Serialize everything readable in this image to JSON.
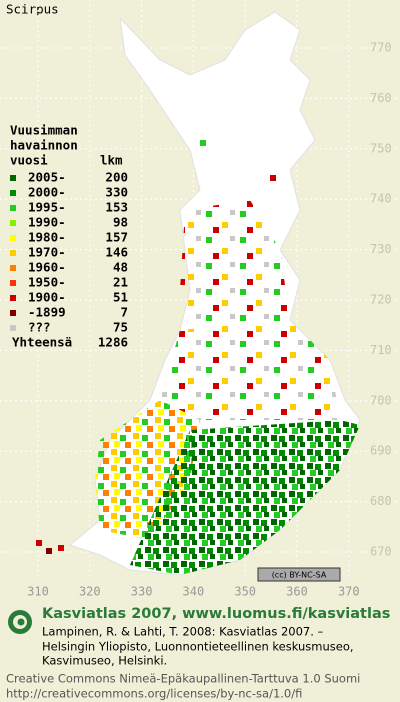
{
  "title": "Scirpus",
  "legend": {
    "heading": [
      "Vuusimman",
      "havainnon"
    ],
    "col_year": "vuosi",
    "col_count": "lkm",
    "items": [
      {
        "label": "2005-",
        "count": 200,
        "color": "#006400"
      },
      {
        "label": "2000-",
        "count": 330,
        "color": "#008a00"
      },
      {
        "label": "1995-",
        "count": 153,
        "color": "#22cc22"
      },
      {
        "label": "1990-",
        "count": 98,
        "color": "#88ee00"
      },
      {
        "label": "1980-",
        "count": 157,
        "color": "#ffff00"
      },
      {
        "label": "1970-",
        "count": 146,
        "color": "#ffcc00"
      },
      {
        "label": "1960-",
        "count": 48,
        "color": "#ff8000"
      },
      {
        "label": "1950-",
        "count": 21,
        "color": "#ff3300"
      },
      {
        "label": "1900-",
        "count": 51,
        "color": "#cc0000"
      },
      {
        "label": "-1899",
        "count": 7,
        "color": "#800000"
      },
      {
        "label": "???",
        "count": 75,
        "color": "#c8c8c8"
      }
    ],
    "total_label": "Yhteensä",
    "total": 1286
  },
  "grid": {
    "y_labels": [
      770,
      760,
      750,
      740,
      730,
      720,
      710,
      700,
      690,
      680,
      670
    ],
    "x_labels": [
      310,
      320,
      330,
      340,
      350,
      360,
      370
    ]
  },
  "license_badge": "(cc) BY-NC-SA",
  "footer": {
    "site": "Kasviatlas 2007, www.luomus.fi/kasviatlas",
    "citation": [
      "Lampinen, R. & Lahti, T. 2008: Kasviatlas 2007. –",
      "Helsingin Yliopisto, Luonnontieteellinen keskusmuseo,",
      "Kasvimuseo, Helsinki."
    ],
    "license": [
      "Creative Commons Nimeä-Epäkaupallinen-Tarttuva 1.0 Suomi",
      "http://creativecommons.org/licenses/by-nc-sa/1.0/fi"
    ]
  }
}
